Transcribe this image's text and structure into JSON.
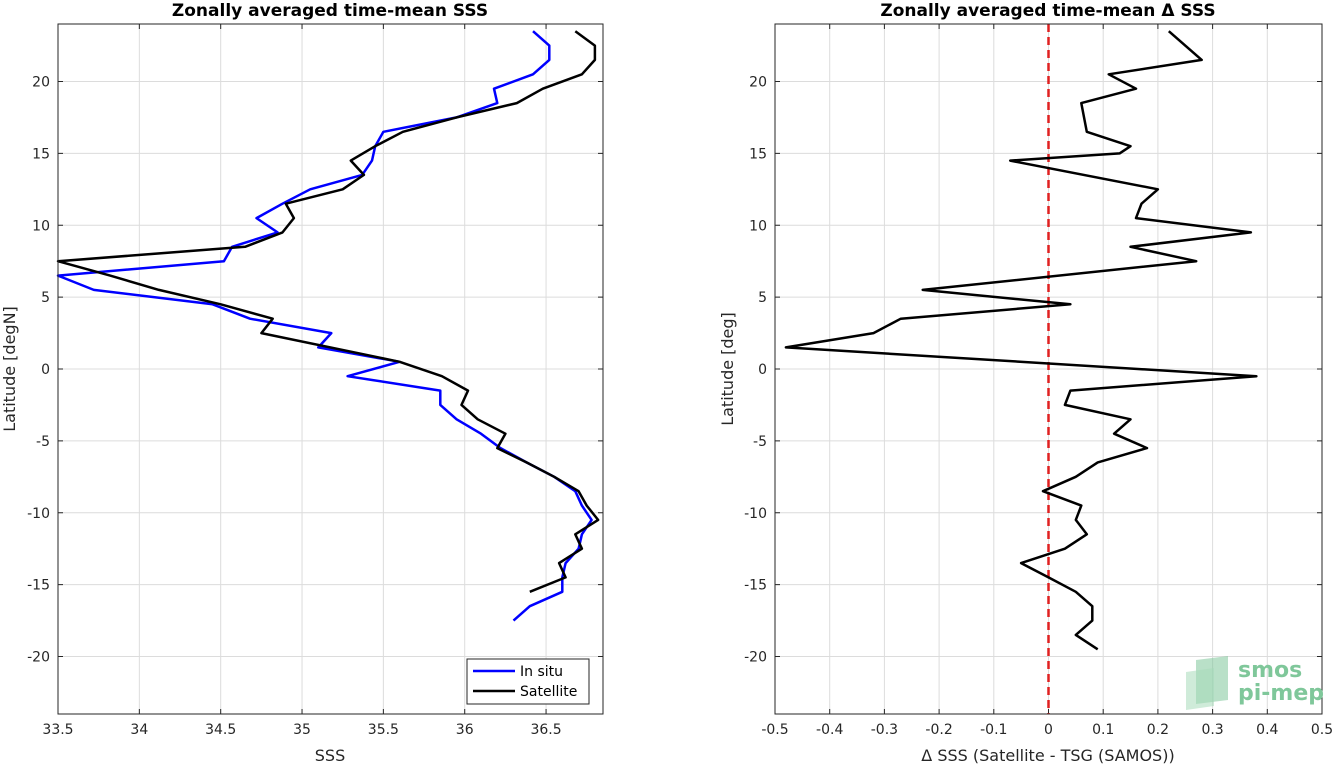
{
  "chart_data": [
    {
      "type": "line",
      "title": "Zonally averaged time-mean SSS",
      "xlabel": "SSS",
      "ylabel": "Latitude [degN]",
      "xlim": [
        33.5,
        36.85
      ],
      "ylim": [
        -24,
        24
      ],
      "xticks": [
        "33.5",
        "34",
        "34.5",
        "35",
        "35.5",
        "36",
        "36.5"
      ],
      "yticks": [
        "20",
        "15",
        "10",
        "5",
        "0",
        "-5",
        "-10",
        "-15",
        "-20"
      ],
      "grid": true,
      "legend_placement": "bottom-right",
      "series": [
        {
          "name": "In situ",
          "color": "#0000ff",
          "x": [
            36.42,
            36.52,
            36.52,
            36.42,
            36.18,
            36.2,
            35.95,
            35.5,
            35.45,
            35.43,
            35.37,
            35.05,
            34.88,
            34.72,
            34.85,
            34.57,
            34.52,
            33.5,
            33.72,
            34.45,
            34.68,
            35.18,
            35.1,
            35.6,
            35.28,
            35.85,
            35.85,
            35.95,
            36.1,
            36.22,
            36.38,
            36.55,
            36.68,
            36.72,
            36.78,
            36.72,
            36.7,
            36.62,
            36.6,
            36.6,
            36.4,
            36.3
          ],
          "y": [
            23.5,
            22.5,
            21.5,
            20.5,
            19.5,
            18.5,
            17.5,
            16.5,
            15.5,
            14.5,
            13.5,
            12.5,
            11.5,
            10.5,
            9.5,
            8.5,
            7.5,
            6.5,
            5.5,
            4.5,
            3.5,
            2.5,
            1.5,
            0.5,
            -0.5,
            -1.5,
            -2.5,
            -3.5,
            -4.5,
            -5.5,
            -6.5,
            -7.5,
            -8.5,
            -9.5,
            -10.5,
            -11.5,
            -12.5,
            -13.5,
            -14.5,
            -15.5,
            -16.5,
            -17.5
          ]
        },
        {
          "name": "Satellite",
          "color": "#000000",
          "x": [
            36.68,
            36.8,
            36.8,
            36.72,
            36.48,
            36.32,
            35.95,
            35.62,
            35.45,
            35.3,
            35.38,
            35.25,
            34.9,
            34.95,
            34.88,
            34.65,
            33.5,
            33.82,
            34.12,
            34.5,
            34.82,
            34.75,
            35.6,
            35.86,
            36.02,
            35.98,
            36.08,
            36.25,
            36.2,
            36.38,
            36.55,
            36.7,
            36.75,
            36.82,
            36.68,
            36.72,
            36.58,
            36.62,
            36.4
          ],
          "y": [
            23.5,
            22.5,
            21.5,
            20.5,
            19.5,
            18.5,
            17.5,
            16.5,
            15.5,
            14.5,
            13.5,
            12.5,
            11.5,
            10.5,
            9.5,
            8.5,
            7.5,
            6.5,
            5.5,
            4.5,
            3.5,
            2.5,
            0.5,
            -0.5,
            -1.5,
            -2.5,
            -3.5,
            -4.5,
            -5.5,
            -6.5,
            -7.5,
            -8.5,
            -9.5,
            -10.5,
            -11.5,
            -12.5,
            -13.5,
            -14.5,
            -15.5
          ]
        }
      ]
    },
    {
      "type": "line",
      "title": "Zonally averaged time-mean Δ SSS",
      "xlabel": "Δ SSS (Satellite - TSG (SAMOS))",
      "ylabel": "Latitude [deg]",
      "xlim": [
        -0.5,
        0.5
      ],
      "ylim": [
        -24,
        24
      ],
      "xticks": [
        "-0.5",
        "-0.4",
        "-0.3",
        "-0.2",
        "-0.1",
        "0",
        "0.1",
        "0.2",
        "0.3",
        "0.4",
        "0.5"
      ],
      "yticks": [
        "20",
        "15",
        "10",
        "5",
        "0",
        "-5",
        "-10",
        "-15",
        "-20"
      ],
      "grid": true,
      "reference_line": {
        "x": 0,
        "color": "#e02020",
        "style": "dashed"
      },
      "series": [
        {
          "color": "#000000",
          "x": [
            0.22,
            0.28,
            0.11,
            0.16,
            0.06,
            0.07,
            0.15,
            0.13,
            -0.07,
            0.2,
            0.17,
            0.16,
            0.37,
            0.15,
            0.27,
            -0.23,
            0.04,
            -0.27,
            -0.32,
            -0.48,
            0.38,
            0.04,
            0.03,
            0.15,
            0.12,
            0.18,
            0.09,
            0.05,
            -0.01,
            0.06,
            0.05,
            0.07,
            0.03,
            -0.05,
            0.0,
            0.05,
            0.08,
            0.08,
            0.05,
            0.09
          ],
          "y": [
            23.5,
            21.5,
            20.5,
            19.5,
            18.5,
            16.5,
            15.5,
            15.0,
            14.5,
            12.5,
            11.5,
            10.5,
            9.5,
            8.5,
            7.5,
            5.5,
            4.5,
            3.5,
            2.5,
            1.5,
            -0.5,
            -1.5,
            -2.5,
            -3.5,
            -4.5,
            -5.5,
            -6.5,
            -7.5,
            -8.5,
            -9.5,
            -10.5,
            -11.5,
            -12.5,
            -13.5,
            -14.5,
            -15.5,
            -16.5,
            -17.5,
            -18.5,
            -19.5
          ]
        }
      ]
    }
  ],
  "logo": {
    "line1": "smos",
    "line2": "pi-mep",
    "color": "#7fc79a"
  }
}
